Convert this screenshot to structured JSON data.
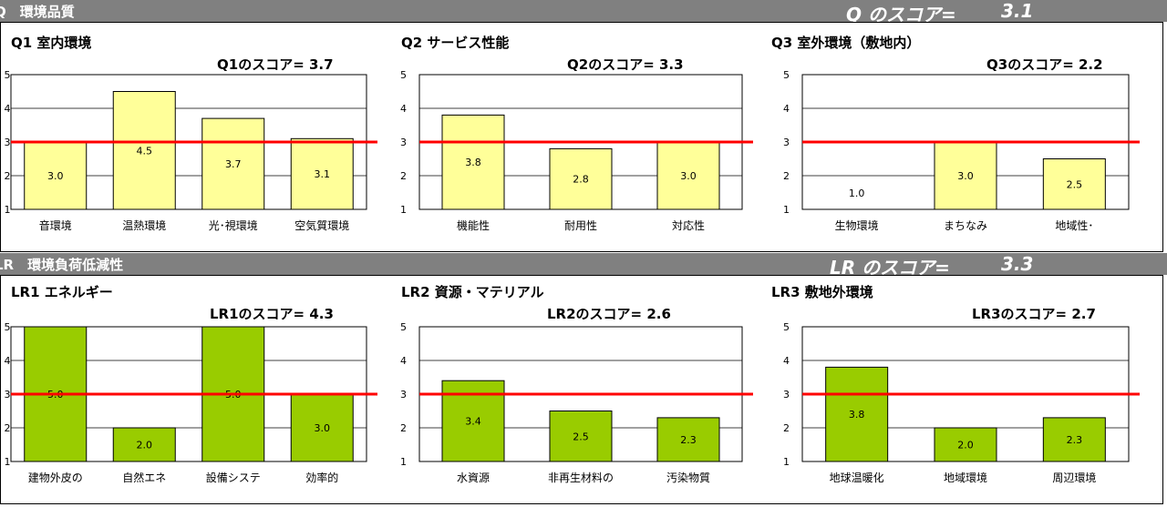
{
  "sections": [
    {
      "title": "Q　環境品質",
      "score_label": "Q のスコア=",
      "score_value": "3.1",
      "bar_color": "#ffff99"
    },
    {
      "title": "LR　環境負荷低減性",
      "score_label": "LR のスコア=",
      "score_value": "3.3",
      "bar_color": "#99cc00"
    }
  ],
  "reference_line_color": "#ff0000",
  "chart_data": [
    {
      "type": "bar",
      "title": "Q1 室内環境",
      "score_label": "Q1のスコア=",
      "score_value": "3.7",
      "categories": [
        "音環境",
        "温熱環境",
        "光･視環境",
        "空気質環境"
      ],
      "values": [
        3.0,
        4.5,
        3.7,
        3.1
      ],
      "data_labels": [
        "3.0",
        "4.5",
        "3.7",
        "3.1"
      ],
      "ylim": [
        1,
        5
      ],
      "yticks": [
        "1",
        "2",
        "3",
        "4",
        "5"
      ],
      "reference_line": 3,
      "grid": true
    },
    {
      "type": "bar",
      "title": "Q2 サービス性能",
      "score_label": "Q2のスコア=",
      "score_value": "3.3",
      "categories": [
        "機能性",
        "耐用性",
        "対応性"
      ],
      "values": [
        3.8,
        2.8,
        3.0
      ],
      "data_labels": [
        "3.8",
        "2.8",
        "3.0"
      ],
      "ylim": [
        1,
        5
      ],
      "yticks": [
        "1",
        "2",
        "3",
        "4",
        "5"
      ],
      "reference_line": 3,
      "grid": true
    },
    {
      "type": "bar",
      "title": "Q3 室外環境（敷地内）",
      "score_label": "Q3のスコア=",
      "score_value": "2.2",
      "categories": [
        "生物環境",
        "まちなみ",
        "地域性･"
      ],
      "values": [
        1.0,
        3.0,
        2.5
      ],
      "data_labels": [
        "1.0",
        "3.0",
        "2.5"
      ],
      "ylim": [
        1,
        5
      ],
      "yticks": [
        "1",
        "2",
        "3",
        "4",
        "5"
      ],
      "reference_line": 3,
      "grid": true
    },
    {
      "type": "bar",
      "title": "LR1 エネルギー",
      "score_label": "LR1のスコア=",
      "score_value": "4.3",
      "categories": [
        "建物外皮の",
        "自然エネ",
        "設備システ",
        "効率的"
      ],
      "values": [
        5.0,
        2.0,
        5.0,
        3.0
      ],
      "data_labels": [
        "5.0",
        "2.0",
        "5.0",
        "3.0"
      ],
      "ylim": [
        1,
        5
      ],
      "yticks": [
        "1",
        "2",
        "3",
        "4",
        "5"
      ],
      "reference_line": 3,
      "grid": true
    },
    {
      "type": "bar",
      "title": "LR2 資源・マテリアル",
      "score_label": "LR2のスコア=",
      "score_value": "2.6",
      "categories": [
        "水資源",
        "非再生材料の",
        "汚染物質"
      ],
      "values": [
        3.4,
        2.5,
        2.3
      ],
      "data_labels": [
        "3.4",
        "2.5",
        "2.3"
      ],
      "ylim": [
        1,
        5
      ],
      "yticks": [
        "1",
        "2",
        "3",
        "4",
        "5"
      ],
      "reference_line": 3,
      "grid": true
    },
    {
      "type": "bar",
      "title": "LR3 敷地外環境",
      "score_label": "LR3のスコア=",
      "score_value": "2.7",
      "categories": [
        "地球温暖化",
        "地域環境",
        "周辺環境"
      ],
      "values": [
        3.8,
        2.0,
        2.3
      ],
      "data_labels": [
        "3.8",
        "2.0",
        "2.3"
      ],
      "ylim": [
        1,
        5
      ],
      "yticks": [
        "1",
        "2",
        "3",
        "4",
        "5"
      ],
      "reference_line": 3,
      "grid": true
    }
  ]
}
